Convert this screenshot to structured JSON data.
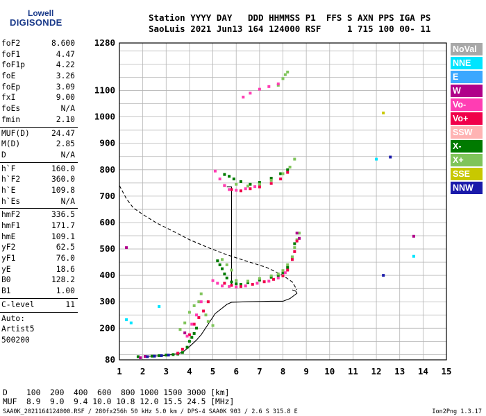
{
  "logo": {
    "line1": "Lowell",
    "line2": "DIGISONDE"
  },
  "header": {
    "row1": "Station YYYY DAY   DDD HHMMSS P1  FFS S AXN PPS IGA PS",
    "row2": "SaoLuis 2021 Jun13 164 124000 RSF     1 715 100 00- 11"
  },
  "params": {
    "group1": [
      {
        "label": "foF2",
        "value": "8.600"
      },
      {
        "label": "foF1",
        "value": "4.47"
      },
      {
        "label": "foF1p",
        "value": "4.22"
      },
      {
        "label": "foE",
        "value": "3.26"
      },
      {
        "label": "foEp",
        "value": "3.09"
      },
      {
        "label": "fxI",
        "value": "9.00"
      },
      {
        "label": "foEs",
        "value": "N/A"
      },
      {
        "label": "fmin",
        "value": "2.10"
      }
    ],
    "group2": [
      {
        "label": "MUF(D)",
        "value": "24.47"
      },
      {
        "label": "M(D)",
        "value": "2.85"
      },
      {
        "label": "D",
        "value": "N/A"
      }
    ],
    "group3": [
      {
        "label": "h`F",
        "value": "160.0"
      },
      {
        "label": "h`F2",
        "value": "360.0"
      },
      {
        "label": "h`E",
        "value": "109.8"
      },
      {
        "label": "h`Es",
        "value": "N/A"
      }
    ],
    "group4": [
      {
        "label": "hmF2",
        "value": "336.5"
      },
      {
        "label": "hmF1",
        "value": "171.7"
      },
      {
        "label": "hmE",
        "value": "109.1"
      },
      {
        "label": "yF2",
        "value": "62.5"
      },
      {
        "label": "yF1",
        "value": "76.0"
      },
      {
        "label": "yE",
        "value": "18.6"
      },
      {
        "label": "B0",
        "value": "128.2"
      },
      {
        "label": "B1",
        "value": "1.00"
      }
    ],
    "group5": [
      {
        "label": "C-level",
        "value": "11"
      }
    ],
    "notes": [
      "Auto:",
      "Artist5",
      "500200"
    ]
  },
  "legend": [
    {
      "label": "NoVal",
      "color": "#a8a8a8"
    },
    {
      "label": "NNE",
      "color": "#00e5ff"
    },
    {
      "label": "E",
      "color": "#3ba7ff"
    },
    {
      "label": "W",
      "color": "#b0008a"
    },
    {
      "label": "Vo-",
      "color": "#ff3db3"
    },
    {
      "label": "Vo+",
      "color": "#f0004a"
    },
    {
      "label": "SSW",
      "color": "#ffb3b3"
    },
    {
      "label": "X-",
      "color": "#007a00"
    },
    {
      "label": "X+",
      "color": "#7fc45a"
    },
    {
      "label": "SSE",
      "color": "#c8c800"
    },
    {
      "label": "NNW",
      "color": "#1a1aaa"
    }
  ],
  "footer": {
    "row1": "D    100  200  400  600  800 1000 1500 3000 [km]",
    "row2": "MUF  8.9  9.0  9.4 10.0 10.8 12.0 15.5 24.5 [MHz]",
    "bottom": "SAA0K_2021164124000.RSF / 280fx256h 50 kHz 5.0 km / DPS-4 SAA0K 903 / 2.6 S 315.8 E",
    "version": "Ion2Png 1.3.17"
  },
  "chart_data": {
    "type": "scatter",
    "xlim": [
      1,
      15
    ],
    "ylim": [
      80,
      1280
    ],
    "xticks": [
      1,
      2,
      3,
      4,
      5,
      6,
      7,
      8,
      9,
      10,
      11,
      12,
      13,
      14,
      15
    ],
    "yticks": [
      80,
      200,
      300,
      400,
      500,
      600,
      700,
      800,
      900,
      1000,
      1100,
      1280
    ],
    "grid": true,
    "profile_solid": [
      [
        2.1,
        93
      ],
      [
        2.8,
        96
      ],
      [
        3.3,
        100
      ],
      [
        3.7,
        108
      ],
      [
        4.0,
        130
      ],
      [
        4.3,
        155
      ],
      [
        4.5,
        175
      ],
      [
        4.8,
        215
      ],
      [
        5.1,
        255
      ],
      [
        5.5,
        283
      ],
      [
        5.6,
        290
      ],
      [
        5.8,
        298
      ],
      [
        6.5,
        300
      ],
      [
        7.5,
        302
      ],
      [
        8.0,
        302
      ],
      [
        8.3,
        312
      ],
      [
        8.6,
        332
      ],
      [
        8.55,
        340
      ],
      [
        8.4,
        345
      ]
    ],
    "profile_dashed": [
      [
        1.0,
        740
      ],
      [
        1.3,
        690
      ],
      [
        1.6,
        655
      ],
      [
        2.1,
        625
      ],
      [
        2.6,
        598
      ],
      [
        3.3,
        567
      ],
      [
        4.0,
        535
      ],
      [
        4.8,
        505
      ],
      [
        5.6,
        478
      ],
      [
        6.4,
        455
      ],
      [
        7.3,
        430
      ],
      [
        8.0,
        400
      ],
      [
        8.4,
        375
      ],
      [
        8.6,
        345
      ]
    ],
    "trace_vertical": [
      [
        5.6,
        735
      ],
      [
        5.8,
        735
      ],
      [
        5.8,
        700
      ],
      [
        5.8,
        360
      ]
    ],
    "series": [
      {
        "color": "#007a00",
        "points": [
          [
            1.8,
            92
          ],
          [
            2.1,
            93
          ],
          [
            2.4,
            94
          ],
          [
            2.7,
            96
          ],
          [
            3.0,
            98
          ],
          [
            3.3,
            100
          ],
          [
            3.5,
            102
          ],
          [
            3.7,
            108
          ],
          [
            3.9,
            128
          ],
          [
            4.0,
            150
          ],
          [
            4.1,
            165
          ],
          [
            4.2,
            180
          ],
          [
            4.3,
            200
          ],
          [
            5.2,
            455
          ],
          [
            5.3,
            440
          ],
          [
            5.4,
            425
          ],
          [
            5.5,
            405
          ],
          [
            5.6,
            390
          ],
          [
            5.8,
            375
          ],
          [
            6.0,
            368
          ],
          [
            6.2,
            366
          ],
          [
            6.5,
            372
          ],
          [
            7.0,
            382
          ],
          [
            7.5,
            393
          ],
          [
            7.8,
            400
          ],
          [
            8.0,
            410
          ],
          [
            8.2,
            430
          ],
          [
            8.4,
            470
          ],
          [
            8.5,
            520
          ],
          [
            5.5,
            782
          ],
          [
            5.7,
            775
          ],
          [
            5.9,
            765
          ],
          [
            6.2,
            755
          ],
          [
            6.6,
            745
          ],
          [
            7.0,
            752
          ],
          [
            7.5,
            768
          ],
          [
            7.9,
            785
          ],
          [
            8.2,
            800
          ]
        ]
      },
      {
        "color": "#7fc45a",
        "points": [
          [
            3.6,
            195
          ],
          [
            3.8,
            220
          ],
          [
            4.0,
            260
          ],
          [
            4.2,
            285
          ],
          [
            4.4,
            300
          ],
          [
            4.5,
            330
          ],
          [
            4.7,
            250
          ],
          [
            4.8,
            225
          ],
          [
            5.0,
            210
          ],
          [
            5.4,
            460
          ],
          [
            5.6,
            440
          ],
          [
            5.8,
            420
          ],
          [
            6.0,
            380
          ],
          [
            6.5,
            378
          ],
          [
            7.0,
            388
          ],
          [
            7.5,
            398
          ],
          [
            7.8,
            405
          ],
          [
            8.0,
            418
          ],
          [
            8.2,
            440
          ],
          [
            8.4,
            470
          ],
          [
            8.5,
            505
          ],
          [
            8.6,
            535
          ],
          [
            8.7,
            560
          ],
          [
            6.0,
            745
          ],
          [
            6.5,
            738
          ],
          [
            7.0,
            745
          ],
          [
            7.5,
            760
          ],
          [
            8.0,
            785
          ],
          [
            8.3,
            810
          ],
          [
            8.5,
            840
          ],
          [
            7.8,
            1120
          ],
          [
            8.0,
            1145
          ],
          [
            8.1,
            1160
          ],
          [
            8.2,
            1170
          ]
        ]
      },
      {
        "color": "#f0004a",
        "points": [
          [
            3.5,
            105
          ],
          [
            3.7,
            120
          ],
          [
            4.0,
            175
          ],
          [
            4.2,
            215
          ],
          [
            4.4,
            240
          ],
          [
            4.6,
            265
          ],
          [
            4.8,
            300
          ],
          [
            5.5,
            370
          ],
          [
            5.8,
            362
          ],
          [
            6.2,
            358
          ],
          [
            6.7,
            366
          ],
          [
            7.2,
            376
          ],
          [
            7.6,
            385
          ],
          [
            8.0,
            398
          ],
          [
            8.2,
            420
          ],
          [
            8.4,
            460
          ],
          [
            8.5,
            490
          ],
          [
            8.6,
            530
          ],
          [
            5.5,
            740
          ],
          [
            5.8,
            725
          ],
          [
            6.2,
            720
          ],
          [
            6.6,
            728
          ],
          [
            7.0,
            735
          ],
          [
            7.5,
            748
          ],
          [
            7.9,
            765
          ],
          [
            8.2,
            790
          ]
        ]
      },
      {
        "color": "#ff3db3",
        "points": [
          [
            3.9,
            170
          ],
          [
            4.1,
            215
          ],
          [
            4.3,
            250
          ],
          [
            4.5,
            300
          ],
          [
            5.0,
            380
          ],
          [
            5.2,
            370
          ],
          [
            5.4,
            360
          ],
          [
            5.7,
            358
          ],
          [
            6.0,
            356
          ],
          [
            6.4,
            360
          ],
          [
            6.9,
            370
          ],
          [
            7.4,
            378
          ],
          [
            7.8,
            390
          ],
          [
            8.1,
            410
          ],
          [
            5.1,
            795
          ],
          [
            5.3,
            765
          ],
          [
            5.5,
            740
          ],
          [
            5.7,
            725
          ],
          [
            6.0,
            722
          ],
          [
            6.4,
            728
          ],
          [
            6.8,
            736
          ],
          [
            6.3,
            1075
          ],
          [
            6.6,
            1090
          ],
          [
            7.0,
            1105
          ],
          [
            7.4,
            1115
          ],
          [
            7.8,
            1125
          ]
        ]
      },
      {
        "color": "#b0008a",
        "points": [
          [
            1.9,
            88
          ],
          [
            2.1,
            93
          ],
          [
            1.3,
            505
          ],
          [
            3.8,
            182
          ],
          [
            8.6,
            560
          ],
          [
            8.7,
            540
          ],
          [
            13.6,
            548
          ]
        ]
      },
      {
        "color": "#1a1aaa",
        "points": [
          [
            2.2,
            92
          ],
          [
            2.5,
            94
          ],
          [
            2.8,
            96
          ],
          [
            3.1,
            98
          ],
          [
            12.3,
            400
          ],
          [
            12.6,
            848
          ]
        ]
      },
      {
        "color": "#00e5ff",
        "points": [
          [
            1.5,
            220
          ],
          [
            1.3,
            232
          ],
          [
            2.7,
            282
          ],
          [
            13.6,
            472
          ],
          [
            12.0,
            840
          ]
        ]
      },
      {
        "color": "#c8c800",
        "points": [
          [
            12.3,
            1015
          ]
        ]
      }
    ]
  }
}
